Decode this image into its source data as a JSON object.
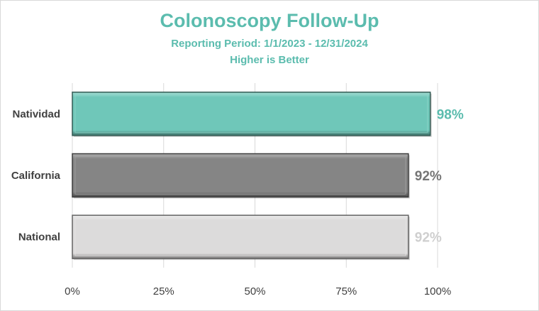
{
  "chart_data": {
    "type": "bar",
    "orientation": "horizontal",
    "title": "Colonoscopy Follow-Up",
    "subtitle": [
      "Reporting Period: 1/1/2023 - 12/31/2024",
      "Higher is Better"
    ],
    "categories": [
      "Natividad",
      "California",
      "National"
    ],
    "values": [
      98,
      92,
      92
    ],
    "data_labels": [
      "98%",
      "92%",
      "92%"
    ],
    "bar_colors": [
      "#6fc7b9",
      "#858585",
      "#dcdbdb"
    ],
    "label_colors": [
      "#5bbcae",
      "#757575",
      "#cfcfcf"
    ],
    "xlim": [
      0,
      100
    ],
    "xticks": [
      0,
      25,
      50,
      75,
      100
    ],
    "xtick_labels": [
      "0%",
      "25%",
      "50%",
      "75%",
      "100%"
    ],
    "grid": "vertical",
    "legend": "none"
  }
}
